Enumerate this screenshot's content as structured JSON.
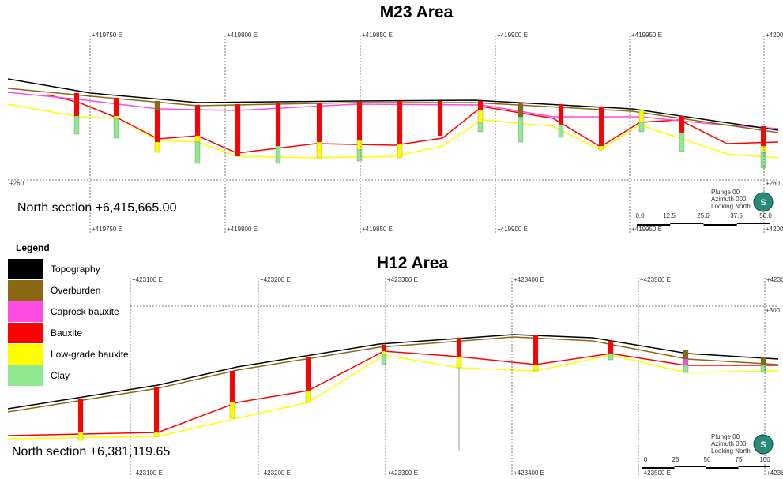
{
  "sections": [
    {
      "title": "M23 Area",
      "easting_labels": [
        "+419750 E",
        "+419800 E",
        "+419850 E",
        "+419900 E",
        "+419950 E",
        "+4200"
      ],
      "elevation_labels": [
        "+260",
        "+260"
      ],
      "section_label": "North section +6,415,665.00",
      "orientation": [
        "Plunge 00",
        "Azimuth 000",
        "Looking North"
      ],
      "scale_labels": [
        "0.0",
        "12.5",
        "25.0",
        "37.5",
        "50.0"
      ]
    },
    {
      "title": "H12 Area",
      "easting_labels": [
        "+423100 E",
        "+423200 E",
        "+423300 E",
        "+423400 E",
        "+423500 E",
        "+4236"
      ],
      "elevation_labels": [
        "+300"
      ],
      "section_label": "North section +6,381,119.65",
      "orientation": [
        "Plunge 00",
        "Azimuth 000",
        "Looking North"
      ],
      "scale_labels": [
        "0",
        "25",
        "50",
        "75",
        "100"
      ]
    }
  ],
  "legend": {
    "title": "Legend",
    "items": [
      {
        "label": "Topography",
        "color": "#000000"
      },
      {
        "label": "Overburden",
        "color": "#8b6914"
      },
      {
        "label": "Caprock bauxite",
        "color": "#ff4ce0"
      },
      {
        "label": "Bauxite",
        "color": "#ff0000"
      },
      {
        "label": "Low-grade bauxite",
        "color": "#ffff00"
      },
      {
        "label": "Clay",
        "color": "#90e890"
      }
    ]
  }
}
